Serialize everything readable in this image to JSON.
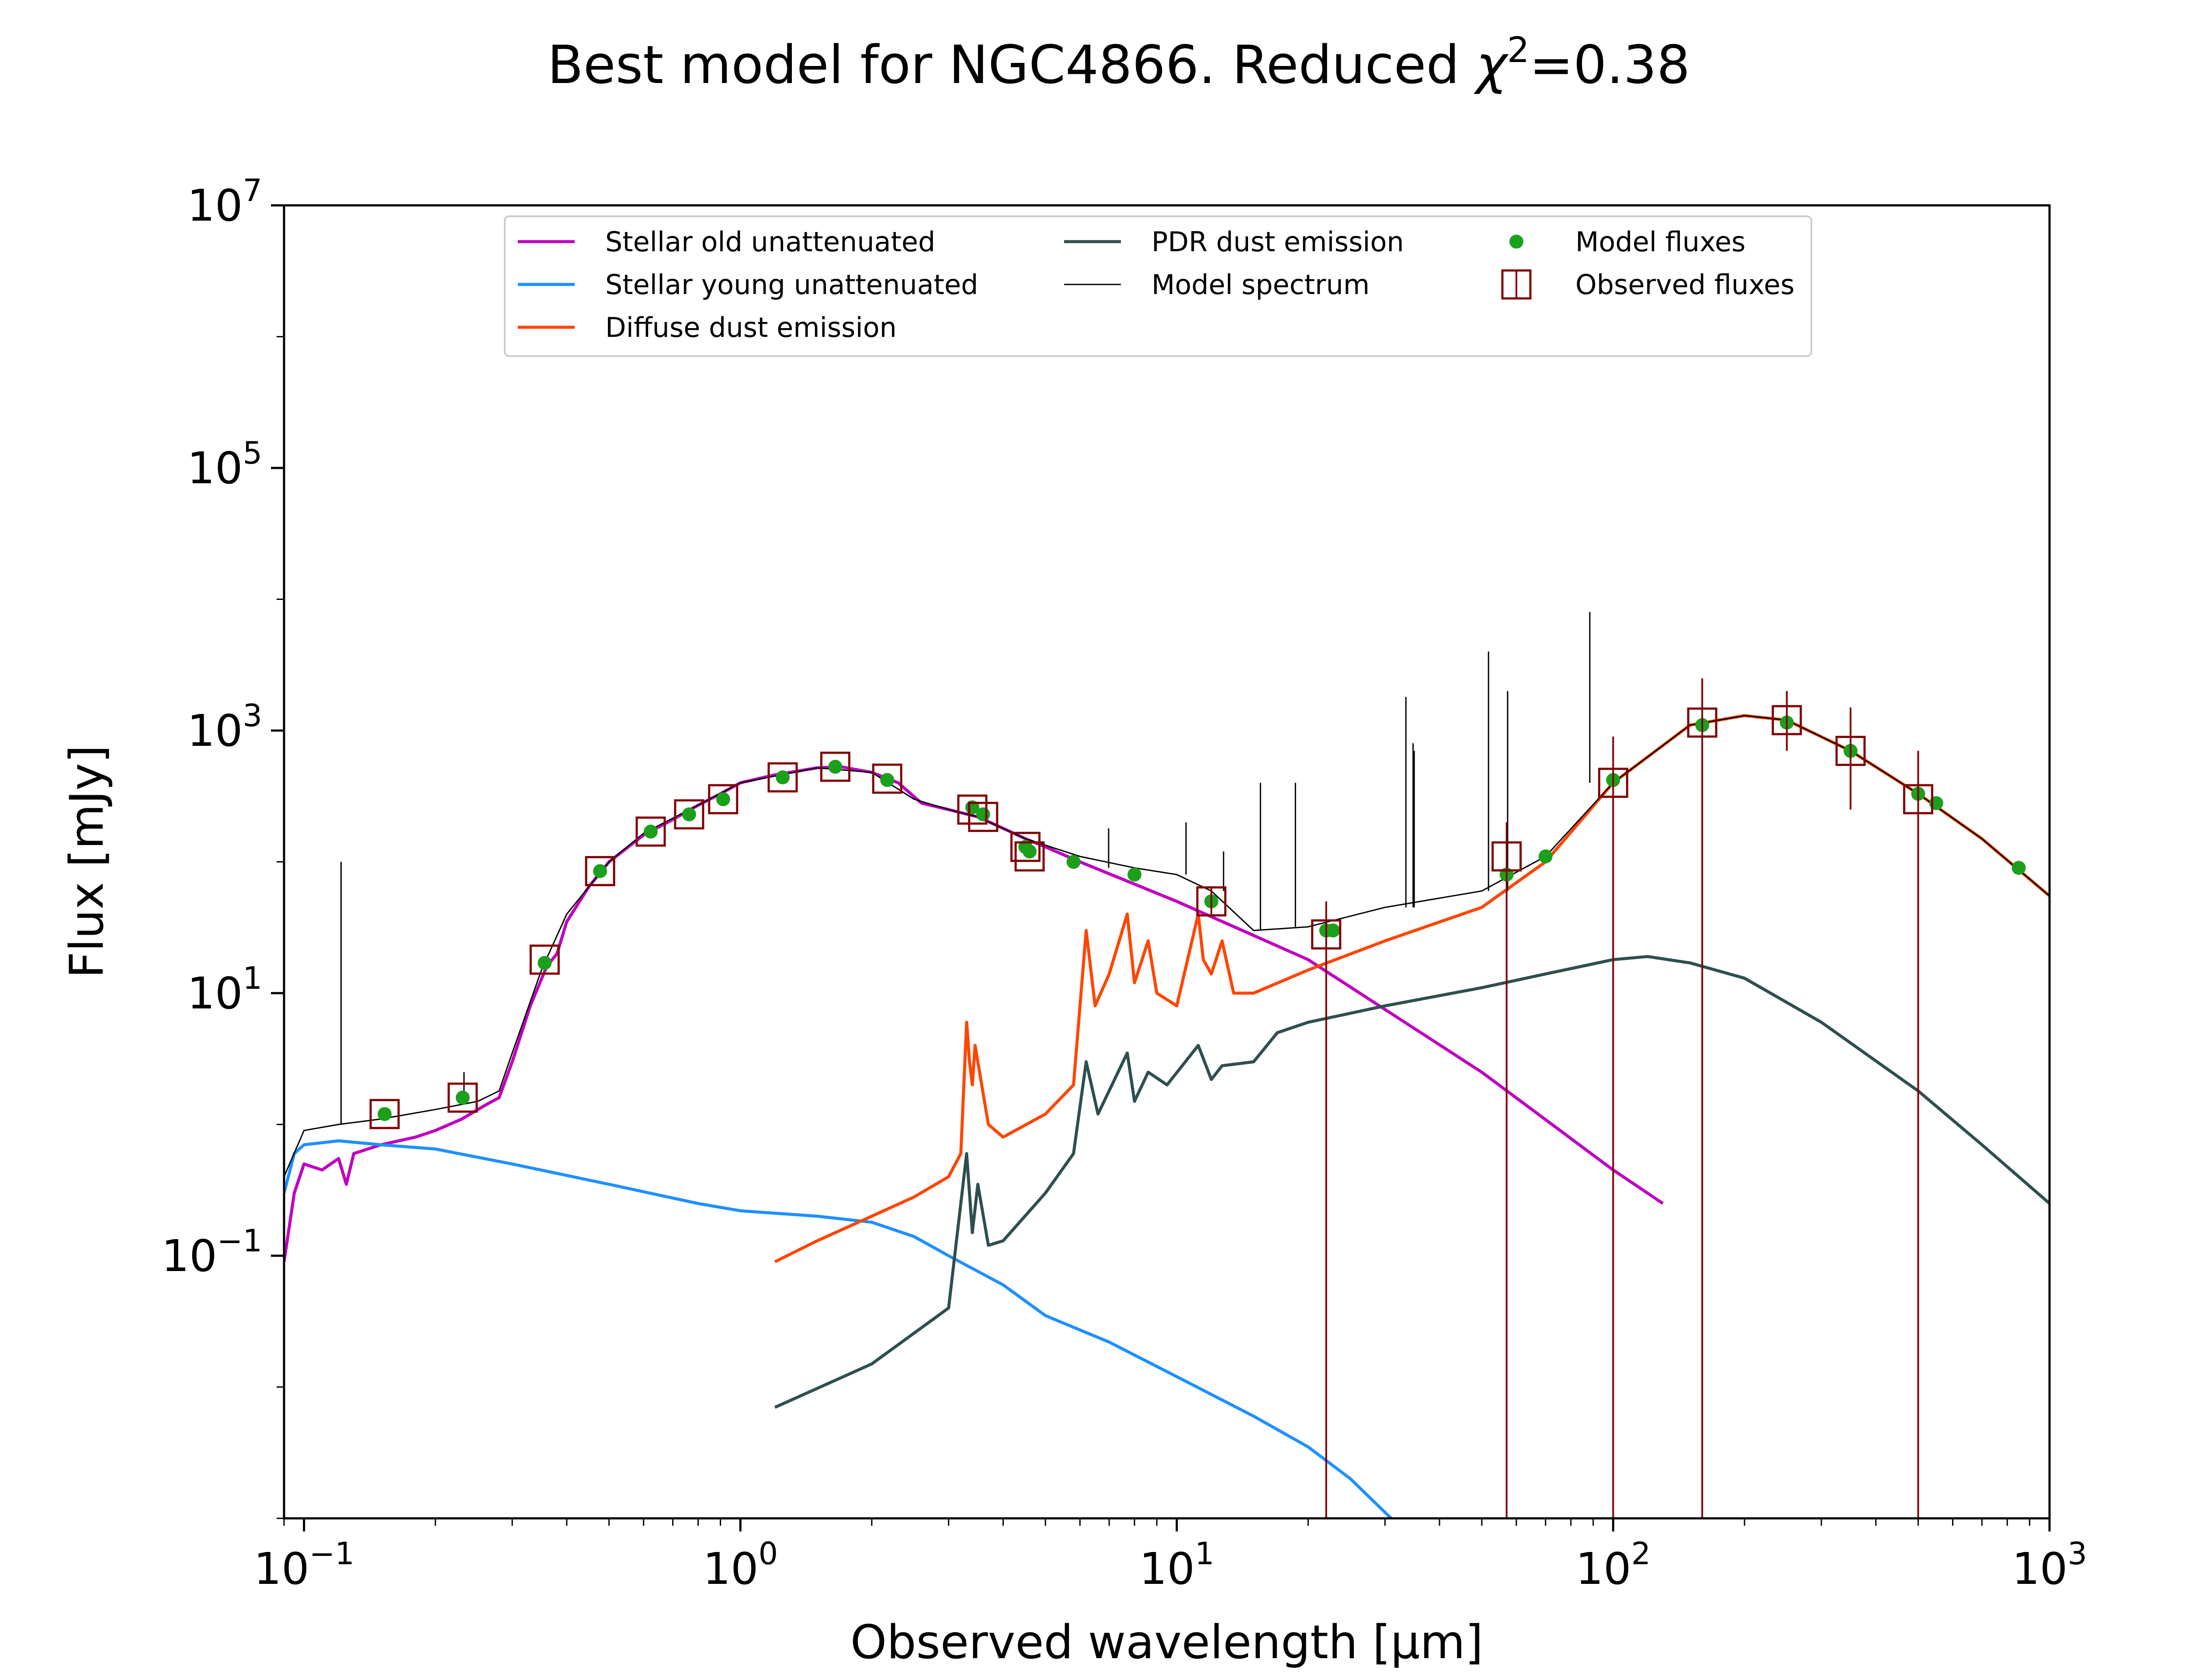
{
  "chart_data": {
    "type": "line",
    "title": "Best model for NGC4866. Reduced χ²=0.38",
    "title_parts": {
      "main": "Best model for NGC4866. Reduced ",
      "chi": "χ",
      "sup": "2",
      "tail": "=0.38"
    },
    "xlabel": "Observed wavelength [μm]",
    "ylabel": "Flux [mJy]",
    "x_scale": "log",
    "y_scale": "log",
    "xlim": [
      0.09,
      1000
    ],
    "ylim": [
      0.001,
      10000000
    ],
    "grid": false,
    "legend_placement": "top-center",
    "x_ticks": [
      {
        "value": 0.1,
        "base": "10",
        "exp": "−1"
      },
      {
        "value": 1,
        "base": "10",
        "exp": "0"
      },
      {
        "value": 10,
        "base": "10",
        "exp": "1"
      },
      {
        "value": 100,
        "base": "10",
        "exp": "2"
      },
      {
        "value": 1000,
        "base": "10",
        "exp": "3"
      }
    ],
    "y_ticks": [
      {
        "value": 0.1,
        "base": "10",
        "exp": "−1"
      },
      {
        "value": 10,
        "base": "10",
        "exp": "1"
      },
      {
        "value": 1000,
        "base": "10",
        "exp": "3"
      },
      {
        "value": 100000,
        "base": "10",
        "exp": "5"
      },
      {
        "value": 10000000,
        "base": "10",
        "exp": "7"
      }
    ],
    "series": [
      {
        "name": "Stellar old unattenuated",
        "kind": "line",
        "color": "#bf00bf",
        "points": [
          [
            0.09,
            0.09
          ],
          [
            0.095,
            0.3
          ],
          [
            0.1,
            0.5
          ],
          [
            0.11,
            0.45
          ],
          [
            0.12,
            0.55
          ],
          [
            0.125,
            0.35
          ],
          [
            0.13,
            0.6
          ],
          [
            0.15,
            0.7
          ],
          [
            0.18,
            0.8
          ],
          [
            0.2,
            0.9
          ],
          [
            0.23,
            1.1
          ],
          [
            0.26,
            1.4
          ],
          [
            0.28,
            1.6
          ],
          [
            0.3,
            3
          ],
          [
            0.33,
            8
          ],
          [
            0.36,
            16
          ],
          [
            0.38,
            20
          ],
          [
            0.4,
            35
          ],
          [
            0.45,
            65
          ],
          [
            0.5,
            100
          ],
          [
            0.6,
            160
          ],
          [
            0.7,
            210
          ],
          [
            0.8,
            270
          ],
          [
            0.9,
            330
          ],
          [
            1.0,
            400
          ],
          [
            1.2,
            460
          ],
          [
            1.5,
            520
          ],
          [
            1.7,
            530
          ],
          [
            2.0,
            480
          ],
          [
            2.3,
            400
          ],
          [
            2.6,
            280
          ],
          [
            3.0,
            250
          ],
          [
            3.5,
            220
          ],
          [
            4.0,
            180
          ],
          [
            4.5,
            150
          ],
          [
            5.0,
            130
          ],
          [
            6.0,
            100
          ],
          [
            10,
            50
          ],
          [
            20,
            18
          ],
          [
            50,
            2.5
          ],
          [
            100,
            0.45
          ],
          [
            130,
            0.25
          ]
        ]
      },
      {
        "name": "Stellar young unattenuated",
        "kind": "line",
        "color": "#1e90ff",
        "points": [
          [
            0.09,
            0.3
          ],
          [
            0.095,
            0.6
          ],
          [
            0.1,
            0.7
          ],
          [
            0.12,
            0.75
          ],
          [
            0.15,
            0.7
          ],
          [
            0.2,
            0.65
          ],
          [
            0.3,
            0.5
          ],
          [
            0.5,
            0.35
          ],
          [
            0.8,
            0.25
          ],
          [
            1.0,
            0.22
          ],
          [
            1.5,
            0.2
          ],
          [
            2.0,
            0.18
          ],
          [
            2.5,
            0.14
          ],
          [
            3.0,
            0.1
          ],
          [
            4.0,
            0.06
          ],
          [
            5.0,
            0.035
          ],
          [
            7.0,
            0.022
          ],
          [
            10,
            0.012
          ],
          [
            15,
            0.006
          ],
          [
            20,
            0.0035
          ],
          [
            25,
            0.002
          ],
          [
            31,
            0.001
          ]
        ]
      },
      {
        "name": "Diffuse dust emission",
        "kind": "line",
        "color": "#ff4500",
        "points": [
          [
            1.2,
            0.09
          ],
          [
            1.5,
            0.13
          ],
          [
            2.0,
            0.2
          ],
          [
            2.5,
            0.28
          ],
          [
            3.0,
            0.4
          ],
          [
            3.2,
            0.6
          ],
          [
            3.3,
            6
          ],
          [
            3.35,
            3
          ],
          [
            3.4,
            2
          ],
          [
            3.45,
            4
          ],
          [
            3.5,
            3
          ],
          [
            3.7,
            1
          ],
          [
            4.0,
            0.8
          ],
          [
            5.0,
            1.2
          ],
          [
            5.8,
            2
          ],
          [
            6.2,
            30
          ],
          [
            6.5,
            8
          ],
          [
            7.0,
            14
          ],
          [
            7.7,
            40
          ],
          [
            8.0,
            12
          ],
          [
            8.6,
            25
          ],
          [
            9.0,
            10
          ],
          [
            10,
            8
          ],
          [
            11.2,
            40
          ],
          [
            11.5,
            18
          ],
          [
            12.0,
            14
          ],
          [
            12.7,
            25
          ],
          [
            13.5,
            10
          ],
          [
            15,
            10
          ],
          [
            20,
            15
          ],
          [
            30,
            25
          ],
          [
            50,
            45
          ],
          [
            70,
            100
          ],
          [
            100,
            400
          ],
          [
            150,
            1100
          ],
          [
            200,
            1300
          ],
          [
            250,
            1200
          ],
          [
            350,
            700
          ],
          [
            500,
            330
          ],
          [
            700,
            150
          ],
          [
            1000,
            55
          ]
        ]
      },
      {
        "name": "PDR dust emission",
        "kind": "line",
        "color": "#2f4f4f",
        "points": [
          [
            1.2,
            0.007
          ],
          [
            2.0,
            0.015
          ],
          [
            3.0,
            0.04
          ],
          [
            3.3,
            0.6
          ],
          [
            3.4,
            0.15
          ],
          [
            3.5,
            0.35
          ],
          [
            3.7,
            0.12
          ],
          [
            4.0,
            0.13
          ],
          [
            5.0,
            0.3
          ],
          [
            5.8,
            0.6
          ],
          [
            6.2,
            3
          ],
          [
            6.6,
            1.2
          ],
          [
            7.7,
            3.5
          ],
          [
            8.0,
            1.5
          ],
          [
            8.6,
            2.5
          ],
          [
            9.5,
            2
          ],
          [
            11.2,
            4
          ],
          [
            12.0,
            2.2
          ],
          [
            12.7,
            2.8
          ],
          [
            15,
            3
          ],
          [
            17,
            5
          ],
          [
            20,
            6
          ],
          [
            30,
            8
          ],
          [
            50,
            11
          ],
          [
            70,
            14
          ],
          [
            100,
            18
          ],
          [
            120,
            19
          ],
          [
            150,
            17
          ],
          [
            200,
            13
          ],
          [
            300,
            6
          ],
          [
            500,
            1.8
          ],
          [
            700,
            0.7
          ],
          [
            1000,
            0.25
          ]
        ]
      },
      {
        "name": "Model spectrum",
        "kind": "thin-line",
        "color": "#000000",
        "points": [
          [
            0.09,
            0.4
          ],
          [
            0.1,
            0.9
          ],
          [
            0.12,
            1.0
          ],
          [
            0.15,
            1.1
          ],
          [
            0.2,
            1.3
          ],
          [
            0.25,
            1.5
          ],
          [
            0.28,
            1.8
          ],
          [
            0.3,
            3.5
          ],
          [
            0.35,
            15
          ],
          [
            0.4,
            40
          ],
          [
            0.5,
            100
          ],
          [
            0.6,
            165
          ],
          [
            0.8,
            270
          ],
          [
            1.0,
            400
          ],
          [
            1.5,
            520
          ],
          [
            2.0,
            480
          ],
          [
            2.5,
            300
          ],
          [
            3.0,
            250
          ],
          [
            3.5,
            220
          ],
          [
            4.5,
            150
          ],
          [
            6.0,
            110
          ],
          [
            8.0,
            90
          ],
          [
            10,
            80
          ],
          [
            12,
            60
          ],
          [
            15,
            30
          ],
          [
            20,
            32
          ],
          [
            30,
            45
          ],
          [
            50,
            60
          ],
          [
            70,
            110
          ],
          [
            100,
            400
          ],
          [
            150,
            1100
          ],
          [
            200,
            1300
          ],
          [
            250,
            1200
          ],
          [
            350,
            700
          ],
          [
            500,
            330
          ],
          [
            700,
            150
          ],
          [
            1000,
            55
          ]
        ],
        "emission_lines": [
          [
            0.1216,
            100
          ],
          [
            0.2326,
            2.5
          ],
          [
            6.98,
            180
          ],
          [
            10.5,
            200
          ],
          [
            12.8,
            120
          ],
          [
            15.55,
            400
          ],
          [
            18.7,
            400
          ],
          [
            33.5,
            1800
          ],
          [
            34.8,
            800
          ],
          [
            35.0,
            700
          ],
          [
            51.8,
            4000
          ],
          [
            57.3,
            2000
          ],
          [
            88.4,
            8000
          ]
        ]
      },
      {
        "name": "Model fluxes",
        "kind": "markers",
        "color": "#1ca01c",
        "points": [
          [
            0.153,
            1.2
          ],
          [
            0.231,
            1.6
          ],
          [
            0.356,
            17
          ],
          [
            0.477,
            85
          ],
          [
            0.623,
            170
          ],
          [
            0.763,
            230
          ],
          [
            0.913,
            300
          ],
          [
            1.25,
            440
          ],
          [
            1.65,
            530
          ],
          [
            2.17,
            420
          ],
          [
            3.4,
            260
          ],
          [
            3.6,
            230
          ],
          [
            4.5,
            130
          ],
          [
            4.6,
            120
          ],
          [
            5.8,
            100
          ],
          [
            8.0,
            80
          ],
          [
            12,
            50
          ],
          [
            22,
            30
          ],
          [
            22.8,
            30
          ],
          [
            57,
            80
          ],
          [
            70,
            110
          ],
          [
            100,
            420
          ],
          [
            160,
            1100
          ],
          [
            250,
            1150
          ],
          [
            350,
            700
          ],
          [
            500,
            330
          ],
          [
            550,
            280
          ],
          [
            850,
            90
          ]
        ]
      },
      {
        "name": "Observed fluxes",
        "kind": "open-square-errorbar",
        "color": "#800000",
        "points": [
          [
            0.153,
            1.2
          ],
          [
            0.231,
            1.6
          ],
          [
            0.356,
            18
          ],
          [
            0.477,
            85
          ],
          [
            0.623,
            170
          ],
          [
            0.763,
            230
          ],
          [
            0.913,
            300
          ],
          [
            1.25,
            440
          ],
          [
            1.65,
            530
          ],
          [
            2.17,
            430
          ],
          [
            3.4,
            250
          ],
          [
            3.6,
            220
          ],
          [
            4.5,
            130
          ],
          [
            4.6,
            110
          ],
          [
            12,
            50
          ],
          [
            22,
            28
          ],
          [
            57,
            110
          ],
          [
            100,
            400
          ],
          [
            160,
            1150
          ],
          [
            250,
            1200
          ],
          [
            350,
            700
          ],
          [
            500,
            300
          ]
        ],
        "errors": [
          [
            0.153,
            1.2,
            1.2
          ],
          [
            0.231,
            1.6,
            1.6
          ],
          [
            0.356,
            18,
            18
          ],
          [
            0.477,
            85,
            85
          ],
          [
            0.623,
            170,
            170
          ],
          [
            0.763,
            230,
            230
          ],
          [
            0.913,
            300,
            300
          ],
          [
            1.25,
            440,
            440
          ],
          [
            1.65,
            530,
            530
          ],
          [
            2.17,
            430,
            430
          ],
          [
            3.4,
            250,
            250
          ],
          [
            3.6,
            220,
            220
          ],
          [
            4.5,
            130,
            130
          ],
          [
            4.6,
            110,
            110
          ],
          [
            12,
            40,
            65
          ],
          [
            22,
            0.001,
            50
          ],
          [
            57,
            0.001,
            200
          ],
          [
            100,
            0.001,
            900
          ],
          [
            160,
            0.001,
            2500
          ],
          [
            250,
            700,
            2000
          ],
          [
            350,
            250,
            1500
          ],
          [
            500,
            0.001,
            700
          ]
        ]
      }
    ]
  }
}
